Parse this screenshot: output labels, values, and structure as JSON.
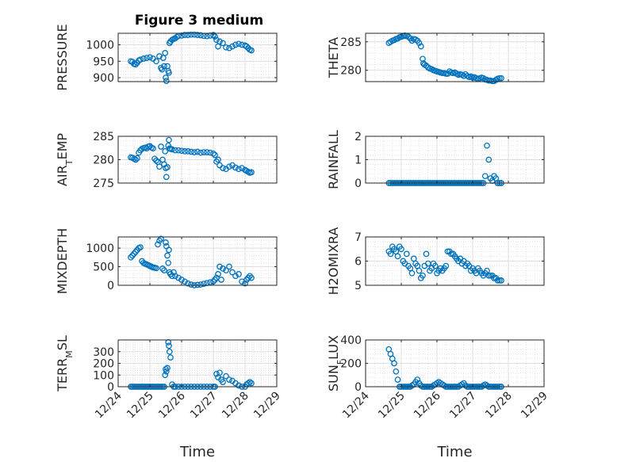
{
  "figure_title": "Figure 3 medium",
  "marker_color": "#0072bd",
  "chart_data": [
    {
      "type": "scatter",
      "ylabel": "PRESSURE",
      "ylim": [
        888,
        1035
      ],
      "yticks": [
        900,
        950,
        1000
      ],
      "xlim": [
        0,
        5
      ],
      "xticks": [
        "12/24",
        "12/25",
        "12/26",
        "12/27",
        "12/28",
        "12/29"
      ],
      "xtick_labels_shown": false,
      "grid": true,
      "x": [
        0.4,
        0.45,
        0.5,
        0.55,
        0.6,
        0.65,
        0.7,
        0.8,
        0.9,
        1.0,
        1.1,
        1.2,
        1.3,
        1.35,
        1.38,
        1.42,
        1.45,
        1.48,
        1.5,
        1.52,
        1.55,
        1.58,
        1.6,
        1.62,
        1.65,
        1.7,
        1.75,
        1.8,
        1.85,
        1.9,
        2.0,
        2.1,
        2.2,
        2.3,
        2.4,
        2.5,
        2.6,
        2.7,
        2.8,
        2.9,
        3.0,
        3.05,
        3.1,
        3.15,
        3.2,
        3.3,
        3.4,
        3.5,
        3.6,
        3.7,
        3.8,
        3.9,
        4.0,
        4.05,
        4.1,
        4.15,
        4.2
      ],
      "y": [
        950,
        948,
        942,
        940,
        945,
        952,
        955,
        958,
        960,
        962,
        958,
        950,
        965,
        930,
        925,
        960,
        935,
        975,
        900,
        890,
        935,
        920,
        915,
        1005,
        1010,
        1015,
        1018,
        1020,
        1024,
        1027,
        1028,
        1030,
        1030,
        1031,
        1031,
        1030,
        1029,
        1027,
        1026,
        1028,
        1030,
        1025,
        1015,
        995,
        1010,
        1005,
        992,
        990,
        995,
        1000,
        1003,
        1000,
        998,
        995,
        990,
        985,
        983
      ]
    },
    {
      "type": "scatter",
      "ylabel": "THETA",
      "ylim": [
        278,
        286.5
      ],
      "yticks": [
        280,
        285
      ],
      "xlim": [
        0,
        5
      ],
      "xticks": [
        "12/24",
        "12/25",
        "12/26",
        "12/27",
        "12/28",
        "12/29"
      ],
      "xtick_labels_shown": false,
      "grid": true,
      "x": [
        0.65,
        0.7,
        0.75,
        0.8,
        0.85,
        0.9,
        0.95,
        1.0,
        1.05,
        1.1,
        1.15,
        1.2,
        1.25,
        1.3,
        1.35,
        1.4,
        1.45,
        1.5,
        1.55,
        1.6,
        1.62,
        1.65,
        1.7,
        1.75,
        1.8,
        1.85,
        1.9,
        1.95,
        2.0,
        2.05,
        2.1,
        2.15,
        2.2,
        2.25,
        2.3,
        2.35,
        2.4,
        2.45,
        2.5,
        2.55,
        2.6,
        2.65,
        2.7,
        2.75,
        2.8,
        2.85,
        2.9,
        2.95,
        3.0,
        3.05,
        3.1,
        3.15,
        3.2,
        3.25,
        3.3,
        3.35,
        3.4,
        3.45,
        3.5,
        3.55,
        3.6,
        3.65,
        3.7,
        3.75,
        3.8
      ],
      "y": [
        284.8,
        285.0,
        285.2,
        285.3,
        285.5,
        285.6,
        285.8,
        285.9,
        286.0,
        286.1,
        286.0,
        285.9,
        285.6,
        285.2,
        285.5,
        285.4,
        285.2,
        284.8,
        284.2,
        282.0,
        281.2,
        281.0,
        280.8,
        280.5,
        280.3,
        280.2,
        280.0,
        279.9,
        279.8,
        279.7,
        279.6,
        279.5,
        279.5,
        279.4,
        279.4,
        279.8,
        279.6,
        279.5,
        279.6,
        279.4,
        279.2,
        279.3,
        279.2,
        279.0,
        279.3,
        279.0,
        278.8,
        278.9,
        278.7,
        278.8,
        278.6,
        278.5,
        278.6,
        278.7,
        278.6,
        278.4,
        278.3,
        278.2,
        278.2,
        278.1,
        278.1,
        278.3,
        278.5,
        278.6,
        278.6
      ]
    },
    {
      "type": "scatter",
      "ylabel": "AIR_TEMP",
      "ylim": [
        275,
        285
      ],
      "yticks": [
        275,
        280,
        285
      ],
      "xlim": [
        0,
        5
      ],
      "xticks": [
        "12/24",
        "12/25",
        "12/26",
        "12/27",
        "12/28",
        "12/29"
      ],
      "xtick_labels_shown": false,
      "grid": true,
      "x": [
        0.4,
        0.45,
        0.5,
        0.55,
        0.6,
        0.65,
        0.7,
        0.75,
        0.8,
        0.85,
        0.9,
        0.95,
        1.0,
        1.05,
        1.1,
        1.15,
        1.2,
        1.25,
        1.3,
        1.35,
        1.4,
        1.45,
        1.48,
        1.5,
        1.52,
        1.55,
        1.58,
        1.6,
        1.62,
        1.65,
        1.7,
        1.8,
        1.9,
        2.0,
        2.1,
        2.2,
        2.3,
        2.4,
        2.5,
        2.6,
        2.7,
        2.8,
        2.9,
        3.0,
        3.05,
        3.1,
        3.15,
        3.2,
        3.3,
        3.4,
        3.5,
        3.6,
        3.7,
        3.8,
        3.9,
        4.0,
        4.05,
        4.1,
        4.15,
        4.2
      ],
      "y": [
        280.5,
        280.4,
        280.2,
        280.0,
        280.3,
        281.5,
        282.0,
        282.3,
        282.5,
        282.6,
        282.4,
        282.8,
        282.9,
        282.6,
        282.4,
        280.2,
        279.8,
        279.5,
        278.5,
        282.8,
        280.0,
        279.0,
        281.8,
        278.2,
        276.3,
        278.4,
        283.0,
        284.2,
        282.4,
        282.3,
        282.2,
        282.0,
        282.0,
        281.9,
        281.8,
        281.8,
        281.7,
        281.6,
        281.7,
        281.5,
        281.6,
        281.6,
        281.5,
        281.3,
        281.0,
        279.6,
        280.0,
        278.8,
        278.2,
        278.0,
        278.5,
        278.8,
        278.3,
        278.0,
        278.2,
        277.8,
        277.6,
        277.4,
        277.2,
        277.3
      ]
    },
    {
      "type": "scatter",
      "ylabel": "RAINFALL",
      "ylim": [
        0,
        2
      ],
      "yticks": [
        0,
        1,
        2
      ],
      "xlim": [
        0,
        5
      ],
      "xticks": [
        "12/24",
        "12/25",
        "12/26",
        "12/27",
        "12/28",
        "12/29"
      ],
      "xtick_labels_shown": false,
      "grid": true,
      "x": [
        0.65,
        0.7,
        0.75,
        0.8,
        0.85,
        0.9,
        0.95,
        1.0,
        1.05,
        1.1,
        1.15,
        1.2,
        1.25,
        1.3,
        1.35,
        1.4,
        1.45,
        1.5,
        1.55,
        1.6,
        1.65,
        1.7,
        1.75,
        1.8,
        1.85,
        1.9,
        1.95,
        2.0,
        2.05,
        2.1,
        2.15,
        2.2,
        2.25,
        2.3,
        2.35,
        2.4,
        2.45,
        2.5,
        2.55,
        2.6,
        2.65,
        2.7,
        2.75,
        2.8,
        2.85,
        2.9,
        2.95,
        3.0,
        3.05,
        3.1,
        3.15,
        3.2,
        3.25,
        3.3,
        3.35,
        3.4,
        3.45,
        3.5,
        3.55,
        3.6,
        3.65,
        3.7,
        3.75,
        3.8
      ],
      "y": [
        0,
        0,
        0,
        0,
        0,
        0,
        0,
        0,
        0,
        0,
        0,
        0,
        0,
        0,
        0,
        0,
        0,
        0,
        0,
        0,
        0,
        0,
        0,
        0,
        0,
        0,
        0,
        0,
        0,
        0,
        0,
        0,
        0,
        0,
        0,
        0,
        0,
        0,
        0,
        0,
        0,
        0,
        0,
        0,
        0,
        0,
        0,
        0,
        0,
        0,
        0,
        0,
        0,
        0,
        0.3,
        1.6,
        1.0,
        0.2,
        0.1,
        0.3,
        0.2,
        0,
        0,
        0
      ]
    },
    {
      "type": "scatter",
      "ylabel": "MIXDEPTH",
      "ylim": [
        0,
        1300
      ],
      "yticks": [
        0,
        500,
        1000
      ],
      "xlim": [
        0,
        5
      ],
      "xticks": [
        "12/24",
        "12/25",
        "12/26",
        "12/27",
        "12/28",
        "12/29"
      ],
      "xtick_labels_shown": false,
      "grid": true,
      "x": [
        0.4,
        0.45,
        0.5,
        0.55,
        0.6,
        0.65,
        0.7,
        0.75,
        0.8,
        0.85,
        0.9,
        0.95,
        1.0,
        1.05,
        1.1,
        1.15,
        1.2,
        1.25,
        1.3,
        1.35,
        1.4,
        1.45,
        1.5,
        1.52,
        1.55,
        1.58,
        1.6,
        1.62,
        1.65,
        1.7,
        1.75,
        1.8,
        1.9,
        2.0,
        2.1,
        2.2,
        2.3,
        2.4,
        2.5,
        2.6,
        2.7,
        2.8,
        2.9,
        3.0,
        3.05,
        3.1,
        3.15,
        3.2,
        3.25,
        3.3,
        3.4,
        3.5,
        3.6,
        3.7,
        3.8,
        3.9,
        4.0,
        4.05,
        4.1,
        4.15,
        4.2
      ],
      "y": [
        750,
        800,
        850,
        900,
        950,
        1000,
        1020,
        650,
        600,
        580,
        560,
        540,
        520,
        500,
        480,
        470,
        460,
        1100,
        1200,
        1250,
        450,
        400,
        1150,
        1050,
        800,
        600,
        950,
        350,
        300,
        250,
        350,
        250,
        200,
        150,
        100,
        50,
        20,
        0,
        10,
        20,
        40,
        60,
        80,
        100,
        150,
        200,
        300,
        500,
        150,
        450,
        400,
        500,
        350,
        250,
        300,
        100,
        50,
        150,
        200,
        250,
        200
      ]
    },
    {
      "type": "scatter",
      "ylabel": "H2OMIXRA",
      "ylim": [
        5,
        7
      ],
      "yticks": [
        5,
        6,
        7
      ],
      "xlim": [
        0,
        5
      ],
      "xticks": [
        "12/24",
        "12/25",
        "12/26",
        "12/27",
        "12/28",
        "12/29"
      ],
      "xtick_labels_shown": false,
      "grid": true,
      "x": [
        0.65,
        0.7,
        0.75,
        0.8,
        0.85,
        0.9,
        0.95,
        1.0,
        1.05,
        1.1,
        1.15,
        1.2,
        1.25,
        1.3,
        1.35,
        1.4,
        1.45,
        1.5,
        1.55,
        1.6,
        1.65,
        1.7,
        1.75,
        1.8,
        1.85,
        1.9,
        1.95,
        2.0,
        2.05,
        2.1,
        2.15,
        2.2,
        2.25,
        2.3,
        2.35,
        2.4,
        2.45,
        2.5,
        2.55,
        2.6,
        2.65,
        2.7,
        2.75,
        2.8,
        2.85,
        2.9,
        2.95,
        3.0,
        3.05,
        3.1,
        3.15,
        3.2,
        3.25,
        3.3,
        3.35,
        3.4,
        3.45,
        3.5,
        3.55,
        3.6,
        3.65,
        3.7,
        3.75,
        3.8
      ],
      "y": [
        6.4,
        6.3,
        6.6,
        6.5,
        6.4,
        6.2,
        6.6,
        6.5,
        6.0,
        5.9,
        6.3,
        5.8,
        5.7,
        5.5,
        6.1,
        5.9,
        5.8,
        5.6,
        5.3,
        5.4,
        5.8,
        6.3,
        5.9,
        5.6,
        5.7,
        5.9,
        5.8,
        5.5,
        5.6,
        5.7,
        5.6,
        5.7,
        5.8,
        6.4,
        6.4,
        6.3,
        6.3,
        6.2,
        6.1,
        6.0,
        6.1,
        5.9,
        6.0,
        5.8,
        5.9,
        5.8,
        5.6,
        5.7,
        5.6,
        5.5,
        5.7,
        5.6,
        5.5,
        5.4,
        5.5,
        5.6,
        5.4,
        5.4,
        5.4,
        5.3,
        5.3,
        5.2,
        5.2,
        5.2
      ]
    },
    {
      "type": "scatter",
      "ylabel": "TERR_MSL",
      "ylim": [
        0,
        400
      ],
      "yticks": [
        0,
        100,
        200,
        300
      ],
      "xlim": [
        0,
        5
      ],
      "xticks": [
        "12/24",
        "12/25",
        "12/26",
        "12/27",
        "12/28",
        "12/29"
      ],
      "xtick_labels_shown": true,
      "xlabel": "Time",
      "grid": true,
      "x": [
        0.4,
        0.45,
        0.5,
        0.55,
        0.6,
        0.65,
        0.7,
        0.75,
        0.8,
        0.85,
        0.9,
        0.95,
        1.0,
        1.05,
        1.1,
        1.15,
        1.2,
        1.25,
        1.3,
        1.35,
        1.4,
        1.45,
        1.48,
        1.5,
        1.52,
        1.55,
        1.58,
        1.6,
        1.62,
        1.65,
        1.7,
        1.75,
        1.8,
        1.9,
        2.0,
        2.1,
        2.2,
        2.3,
        2.4,
        2.5,
        2.6,
        2.7,
        2.8,
        2.9,
        3.0,
        3.05,
        3.1,
        3.15,
        3.2,
        3.25,
        3.3,
        3.4,
        3.5,
        3.6,
        3.7,
        3.8,
        3.9,
        4.0,
        4.05,
        4.1,
        4.15,
        4.2
      ],
      "y": [
        0,
        0,
        0,
        0,
        0,
        0,
        0,
        0,
        0,
        0,
        0,
        0,
        0,
        0,
        0,
        0,
        0,
        0,
        0,
        0,
        0,
        0,
        100,
        150,
        130,
        160,
        380,
        350,
        300,
        250,
        20,
        0,
        0,
        0,
        0,
        0,
        0,
        0,
        0,
        0,
        0,
        0,
        0,
        0,
        0,
        0,
        110,
        80,
        120,
        60,
        40,
        90,
        60,
        50,
        30,
        10,
        0,
        0,
        20,
        30,
        40,
        30
      ]
    },
    {
      "type": "scatter",
      "ylabel": "SUN_FLUX",
      "ylim": [
        0,
        400
      ],
      "yticks": [
        0,
        200,
        400
      ],
      "xlim": [
        0,
        5
      ],
      "xticks": [
        "12/24",
        "12/25",
        "12/26",
        "12/27",
        "12/28",
        "12/29"
      ],
      "xtick_labels_shown": true,
      "xlabel": "Time",
      "grid": true,
      "x": [
        0.65,
        0.7,
        0.75,
        0.8,
        0.85,
        0.9,
        0.95,
        1.0,
        1.05,
        1.1,
        1.15,
        1.2,
        1.25,
        1.3,
        1.35,
        1.4,
        1.45,
        1.5,
        1.55,
        1.6,
        1.65,
        1.7,
        1.75,
        1.8,
        1.85,
        1.9,
        1.95,
        2.0,
        2.05,
        2.1,
        2.15,
        2.2,
        2.25,
        2.3,
        2.35,
        2.4,
        2.45,
        2.5,
        2.55,
        2.6,
        2.65,
        2.7,
        2.75,
        2.8,
        2.85,
        2.9,
        2.95,
        3.0,
        3.05,
        3.1,
        3.15,
        3.2,
        3.25,
        3.3,
        3.35,
        3.4,
        3.45,
        3.5,
        3.55,
        3.6,
        3.65,
        3.7,
        3.75,
        3.8
      ],
      "y": [
        320,
        280,
        240,
        200,
        130,
        60,
        0,
        0,
        0,
        0,
        0,
        0,
        0,
        10,
        20,
        40,
        60,
        30,
        10,
        0,
        0,
        0,
        0,
        0,
        0,
        10,
        20,
        30,
        40,
        30,
        20,
        10,
        0,
        0,
        0,
        0,
        0,
        0,
        0,
        0,
        10,
        20,
        30,
        10,
        0,
        0,
        0,
        0,
        0,
        0,
        0,
        0,
        0,
        10,
        20,
        10,
        0,
        0,
        0,
        0,
        0,
        0,
        0,
        0
      ]
    }
  ]
}
